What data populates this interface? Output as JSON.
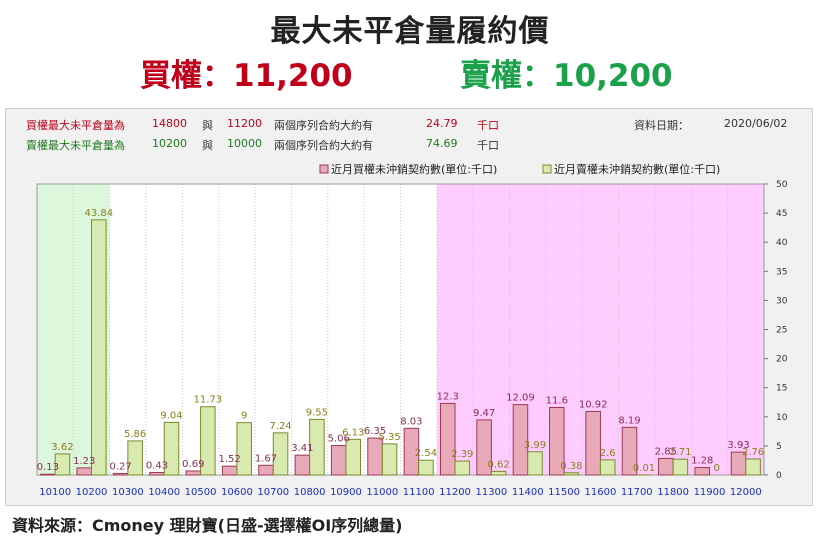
{
  "header": {
    "title": "最大未平倉量履約價",
    "call_headline": "買權：11,200",
    "put_headline": "賣權：10,200"
  },
  "info": {
    "row1": {
      "label": "買權最大未平倉量為",
      "max_strike": "14800",
      "conj": "與",
      "second_strike": "11200",
      "desc": "兩個序列合約大約有",
      "value": "24.79",
      "unit": "千口"
    },
    "row2": {
      "label": "賣權最大未平倉量為",
      "max_strike": "10200",
      "conj": "與",
      "second_strike": "10000",
      "desc": "兩個序列合約大約有",
      "value": "74.69",
      "unit": "千口"
    },
    "date_label": "資料日期：",
    "date_value": "2020/06/02"
  },
  "footer": "資料來源：Cmoney 理財寶(日盛-選擇權OI序列總量)",
  "colors": {
    "call_bar": "#e8a9b8",
    "call_border": "#9b3a52",
    "put_bar": "#d8eab0",
    "put_border": "#7b8a2a",
    "call_label": "#8b2d55",
    "put_label": "#8a7f1a",
    "green_zone": "#dcf7dc",
    "pink_zone": "#ffccff",
    "axis_text": "#1a2fbf"
  },
  "chart_data": {
    "type": "bar",
    "categories": [
      "10100",
      "10200",
      "10300",
      "10400",
      "10500",
      "10600",
      "10700",
      "10800",
      "10900",
      "11000",
      "11100",
      "11200",
      "11300",
      "11400",
      "11500",
      "11600",
      "11700",
      "11800",
      "11900",
      "12000"
    ],
    "series": [
      {
        "name": "近月買權未沖銷契約數(單位:千口)",
        "values": [
          0.13,
          1.23,
          0.27,
          0.43,
          0.69,
          1.52,
          1.67,
          3.41,
          5.06,
          6.35,
          8.03,
          12.3,
          9.47,
          12.09,
          11.6,
          10.92,
          8.19,
          2.85,
          1.28,
          3.93
        ]
      },
      {
        "name": "近月賣權未沖銷契約數(單位:千口)",
        "values": [
          3.62,
          43.84,
          5.86,
          9.04,
          11.73,
          9,
          7.24,
          9.55,
          6.13,
          5.35,
          2.54,
          2.39,
          0.62,
          3.99,
          0.38,
          2.6,
          0.01,
          2.71,
          0,
          2.76
        ]
      }
    ],
    "y_ticks": [
      "0",
      "5",
      "10",
      "15",
      "20",
      "25",
      "30",
      "35",
      "40",
      "45",
      "50"
    ],
    "ylim": [
      0,
      50
    ],
    "legend_position": "top-right",
    "shaded_zones": [
      {
        "from": "10100",
        "to": "10200",
        "color": "green"
      },
      {
        "from": "11200",
        "to": "12000",
        "color": "pink"
      }
    ]
  }
}
